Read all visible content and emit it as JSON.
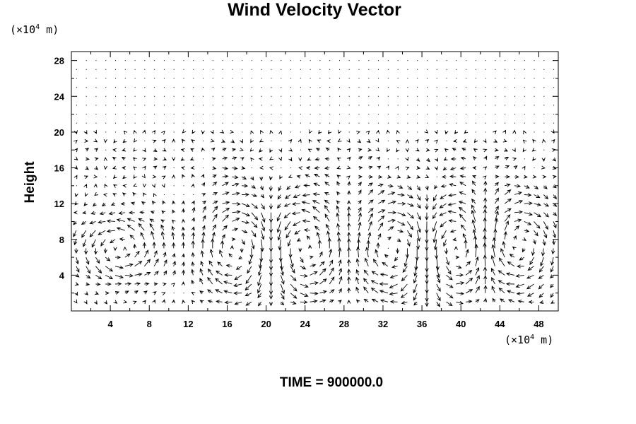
{
  "chart_data": {
    "type": "vector-field",
    "title": "Wind Velocity Vector",
    "ylabel": "Height",
    "xlabel": "",
    "x_unit": {
      "prefix": "(×10",
      "exp": "4",
      "suffix": " m)"
    },
    "y_unit": {
      "prefix": "(×10",
      "exp": "4",
      "suffix": " m)"
    },
    "xlim": [
      0,
      50
    ],
    "ylim": [
      0,
      29
    ],
    "x_ticks": [
      4,
      8,
      12,
      16,
      20,
      24,
      28,
      32,
      36,
      40,
      44,
      48
    ],
    "y_ticks": [
      4,
      8,
      12,
      16,
      20,
      24,
      28
    ],
    "grid_spacing": {
      "dx": 1.0,
      "dy": 1.0
    },
    "cells": [
      {
        "x_range": [
          13,
          21
        ],
        "y_range": [
          0,
          14
        ],
        "rotation": "clockwise"
      },
      {
        "x_range": [
          20,
          28
        ],
        "y_range": [
          0,
          14
        ],
        "rotation": "counterclockwise"
      },
      {
        "x_range": [
          29,
          37
        ],
        "y_range": [
          0,
          14
        ],
        "rotation": "clockwise"
      },
      {
        "x_range": [
          36,
          43
        ],
        "y_range": [
          0,
          14
        ],
        "rotation": "counterclockwise"
      },
      {
        "x_range": [
          0,
          10
        ],
        "y_range": [
          3,
          11
        ],
        "rotation": "counterclockwise"
      },
      {
        "x_range": [
          42,
          50
        ],
        "y_range": [
          1,
          14
        ],
        "rotation": "clockwise"
      }
    ],
    "upper_layer": {
      "y_from": 20.5,
      "magnitude": "near zero"
    },
    "footer": "TIME = 900000.0"
  }
}
